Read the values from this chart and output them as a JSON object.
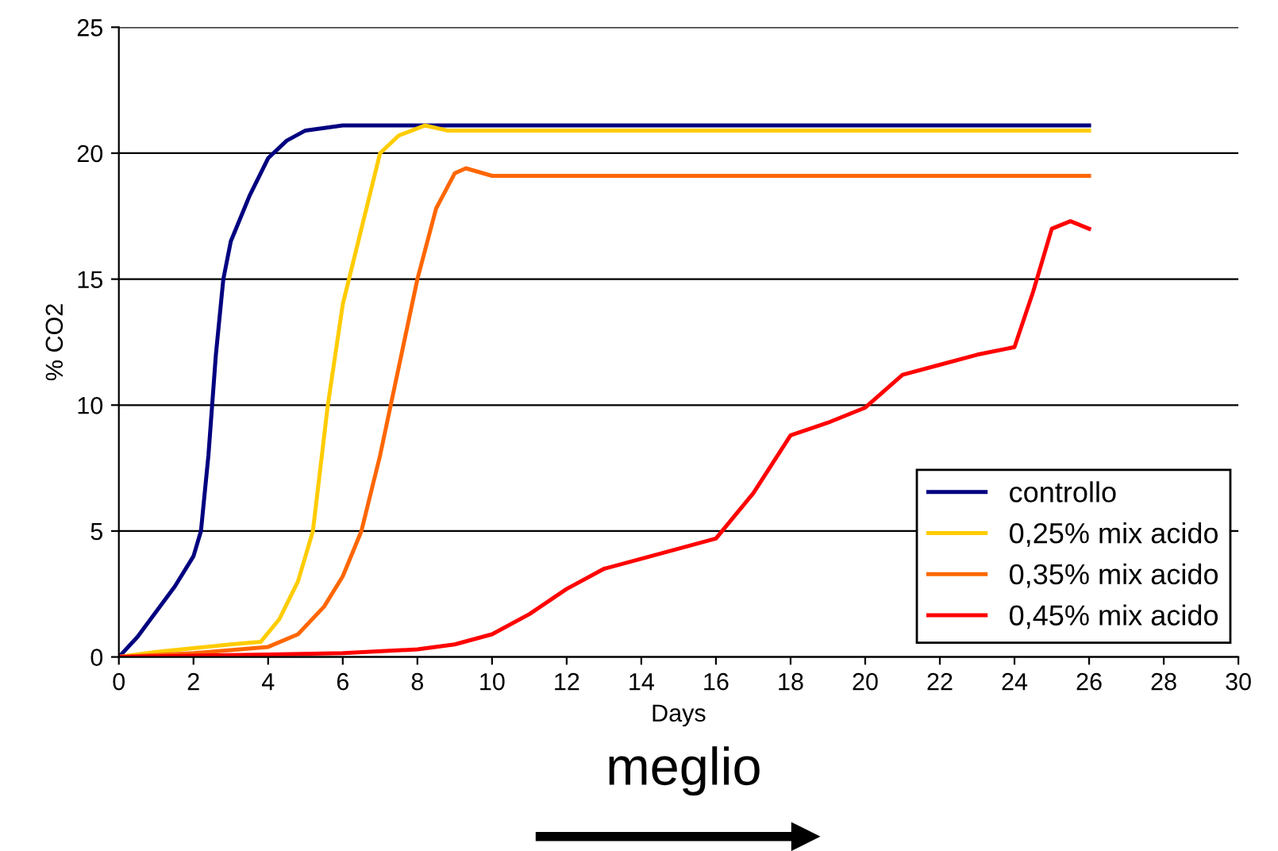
{
  "chart_data": {
    "type": "line",
    "xlabel": "Days",
    "ylabel": "% CO2",
    "xlim": [
      0,
      30
    ],
    "xticks": [
      0,
      2,
      4,
      6,
      8,
      10,
      12,
      14,
      16,
      18,
      20,
      22,
      24,
      26,
      28,
      30
    ],
    "ylim": [
      0,
      25
    ],
    "yticks": [
      0,
      5,
      10,
      15,
      20,
      25
    ],
    "grid": "y",
    "legend": "bottom right",
    "annotations": [
      "meglio"
    ],
    "series": [
      {
        "name": "controllo",
        "color": "#000080",
        "x": [
          0,
          0.5,
          1,
          1.5,
          2,
          2.2,
          2.4,
          2.6,
          2.8,
          3,
          3.5,
          4,
          4.5,
          5,
          6,
          26
        ],
        "values": [
          0,
          0.8,
          1.8,
          2.8,
          4,
          5,
          8,
          12,
          15,
          16.5,
          18.3,
          19.8,
          20.5,
          20.9,
          21.1,
          21.1
        ]
      },
      {
        "name": "0,25% mix acido",
        "color": "#ffcc00",
        "x": [
          0,
          1,
          2,
          3,
          3.8,
          4.3,
          4.8,
          5.2,
          5.6,
          6,
          6.5,
          7,
          7.5,
          8.2,
          8.8,
          26
        ],
        "values": [
          0,
          0.2,
          0.35,
          0.5,
          0.6,
          1.5,
          3,
          5,
          10,
          14,
          17,
          20,
          20.7,
          21.1,
          20.9,
          20.9
        ]
      },
      {
        "name": "0,35% mix acido",
        "color": "#ff6600",
        "x": [
          0,
          2,
          4,
          4.8,
          5.5,
          6,
          6.5,
          7,
          7.5,
          8,
          8.5,
          9,
          9.3,
          10,
          26
        ],
        "values": [
          0,
          0.15,
          0.4,
          0.9,
          2,
          3.2,
          5,
          8,
          11.5,
          15,
          17.8,
          19.2,
          19.4,
          19.1,
          19.1
        ]
      },
      {
        "name": "0,45% mix acido",
        "color": "#ff0000",
        "x": [
          0,
          4,
          6,
          8,
          9,
          10,
          11,
          12,
          13,
          14,
          15,
          16,
          17,
          18,
          19,
          20,
          21,
          22,
          23,
          24,
          24.5,
          25,
          25.5,
          26
        ],
        "values": [
          0,
          0.1,
          0.15,
          0.3,
          0.5,
          0.9,
          1.7,
          2.7,
          3.5,
          3.9,
          4.3,
          4.7,
          6.5,
          8.8,
          9.3,
          9.9,
          11.2,
          11.6,
          12.0,
          12.3,
          14.5,
          17.0,
          17.3,
          17.0
        ]
      }
    ]
  }
}
